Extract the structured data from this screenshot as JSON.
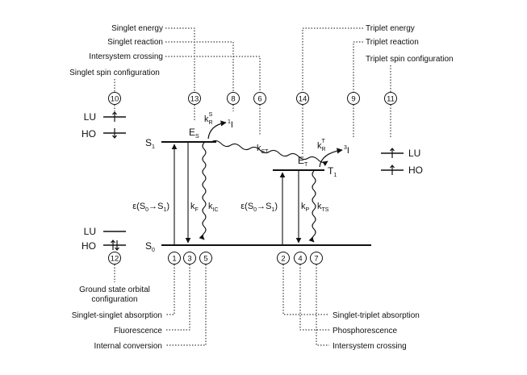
{
  "labels": {
    "singlet_energy": "Singlet energy",
    "singlet_reaction": "Singlet reaction",
    "intersystem_crossing_top": "Intersystem crossing",
    "singlet_spin_configuration": "Singlet spin configuration",
    "triplet_energy": "Triplet energy",
    "triplet_reaction": "Triplet reaction",
    "triplet_spin_configuration": "Triplet spin configuration",
    "ground_state_orbital_line1": "Ground state orbital",
    "ground_state_orbital_line2": "configuration",
    "singlet_singlet_absorption": "Singlet-singlet absorption",
    "fluorescence": "Fluorescence",
    "internal_conversion": "Internal conversion",
    "singlet_triplet_absorption": "Singlet-triplet absorption",
    "phosphorescence": "Phosphorescence",
    "intersystem_crossing_bottom": "Intersystem crossing"
  },
  "numbers": {
    "n1": "1",
    "n2": "2",
    "n3": "3",
    "n4": "4",
    "n5": "5",
    "n6": "6",
    "n7": "7",
    "n8": "8",
    "n9": "9",
    "n10": "10",
    "n11": "11",
    "n12": "12",
    "n13": "13",
    "n14": "14"
  },
  "states": {
    "s0": "S",
    "s0_sub": "0",
    "s1": "S",
    "s1_sub": "1",
    "t1": "T",
    "t1_sub": "1",
    "es": "E",
    "es_sub": "S",
    "et": "E",
    "et_sub": "T"
  },
  "orbitals": {
    "lu": "LU",
    "ho": "HO"
  },
  "rates": {
    "k": "k",
    "kR_S_sub": "R",
    "kR_S_sup": "S",
    "kR_T_sub": "R",
    "kR_T_sup": "T",
    "kST_sub": "ST",
    "kF_sub": "F",
    "kIC_sub": "IC",
    "kP_sub": "P",
    "kTS_sub": "TS",
    "singlet_product_sup": "1",
    "triplet_product_sup": "3",
    "product": "I"
  },
  "absorption": {
    "singlet": "ε(S",
    "triplet": "ε(S",
    "s0_sub": "0",
    "arrow": "→S",
    "s1_sub": "1",
    "t1_sub": "1",
    "close": ")"
  }
}
